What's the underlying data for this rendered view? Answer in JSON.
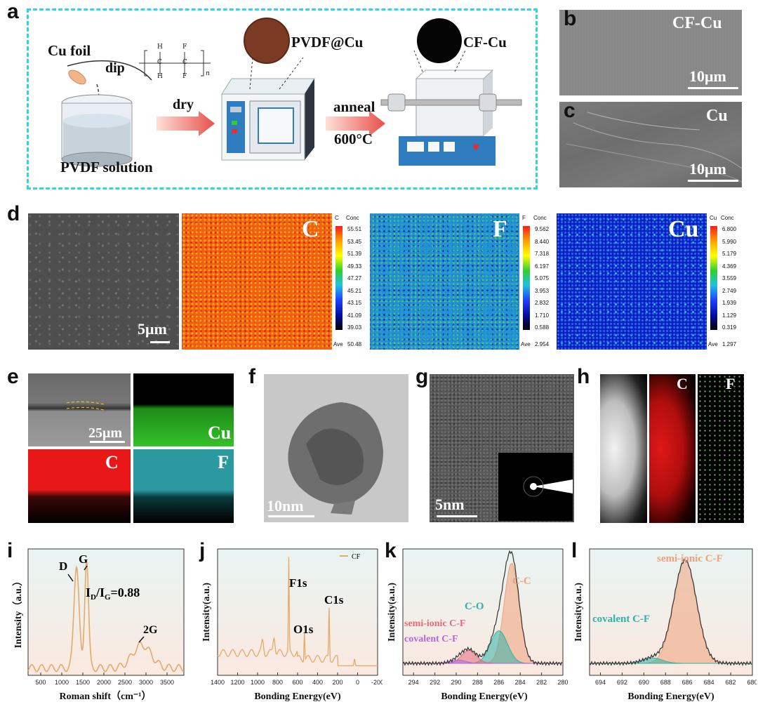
{
  "panel_labels": {
    "a": "a",
    "b": "b",
    "c": "c",
    "d": "d",
    "e": "e",
    "f": "f",
    "g": "g",
    "h": "h",
    "i": "i",
    "j": "j",
    "k": "k",
    "l": "l"
  },
  "schematic": {
    "cu_foil": "Cu foil",
    "dip": "dip",
    "pvdf_solution": "PVDF solution",
    "dry": "dry",
    "pvdf_cu": "PVDF@Cu",
    "anneal": "anneal",
    "temperature": "600°C",
    "cf_cu": "CF-Cu",
    "formula_h": "H",
    "formula_f": "F",
    "formula_c": "C",
    "formula_n": "n",
    "colors": {
      "border": "#36d3e8",
      "arrow": "#f08a7c",
      "pvdf_disc": "#7a3b22",
      "cf_disc": "#050505"
    }
  },
  "sem_b": {
    "label": "CF-Cu",
    "scale": "10μm"
  },
  "sem_c": {
    "label": "Cu",
    "scale": "10μm"
  },
  "panel_d": {
    "scale": "5μm",
    "maps": [
      {
        "element": "C",
        "cb_title": "C",
        "conc": "Conc",
        "ticks": [
          "55.51",
          "53.45",
          "51.39",
          "49.33",
          "47.27",
          "45.21",
          "43.15",
          "41.09",
          "39.03"
        ],
        "ave_label": "Ave",
        "ave": "50.48"
      },
      {
        "element": "F",
        "cb_title": "F",
        "conc": "Conc",
        "ticks": [
          "9.562",
          "8.440",
          "7.318",
          "6.197",
          "5.075",
          "3.953",
          "2.832",
          "1.710",
          "0.588"
        ],
        "ave_label": "Ave",
        "ave": "2.954"
      },
      {
        "element": "Cu",
        "cb_title": "Cu",
        "conc": "Conc",
        "ticks": [
          "6.800",
          "5.990",
          "5.179",
          "4.369",
          "3.559",
          "2.749",
          "1.939",
          "1.129",
          "0.319"
        ],
        "ave_label": "Ave",
        "ave": "1.297"
      }
    ]
  },
  "panel_e": {
    "scale": "25μm",
    "cu": "Cu",
    "c": "C",
    "f": "F"
  },
  "panel_f": {
    "scale": "10nm"
  },
  "panel_g": {
    "scale": "5nm"
  },
  "panel_h": {
    "c": "C",
    "f": "F"
  },
  "chart_data": [
    {
      "type": "line",
      "panel": "i",
      "xlabel": "Roman shift（cm⁻¹）",
      "ylabel": "Intensity（a.u.）",
      "xlim": [
        200,
        3900
      ],
      "xticks": [
        "500",
        "1000",
        "1500",
        "2000",
        "2500",
        "3000",
        "3500"
      ],
      "annotations": {
        "d": "D",
        "g": "G",
        "ratio_prefix": "I",
        "ratio_d": "D",
        "ratio_sep": "/I",
        "ratio_g": "G",
        "ratio_value": "=0.88",
        "g2": "2G"
      },
      "peaks": [
        {
          "name": "D",
          "x": 1350
        },
        {
          "name": "G",
          "x": 1590
        },
        {
          "name": "2G",
          "x": 2900
        }
      ]
    },
    {
      "type": "line",
      "panel": "j",
      "xlabel": "Bonding Energy(eV)",
      "ylabel": "Intensity(a.u.)",
      "xlim": [
        1400,
        -200
      ],
      "xticks": [
        "1400",
        "1200",
        "1000",
        "800",
        "600",
        "400",
        "200",
        "0",
        "-200"
      ],
      "legend": "CF",
      "peaks": [
        {
          "name": "F1s",
          "x": 688
        },
        {
          "name": "O1s",
          "x": 532
        },
        {
          "name": "C1s",
          "x": 285
        }
      ]
    },
    {
      "type": "area",
      "panel": "k",
      "xlabel": "Bonding Energy(eV)",
      "ylabel": "Intensity(a.u.)",
      "xlim": [
        295,
        280
      ],
      "xticks": [
        "294",
        "292",
        "290",
        "288",
        "286",
        "284",
        "282",
        "280"
      ],
      "series": [
        {
          "name": "C-C",
          "center": 284.8,
          "color": "#f0a07a"
        },
        {
          "name": "C-O",
          "center": 286.0,
          "color": "#2fb3a8"
        },
        {
          "name": "semi-ionic C-F",
          "center": 288.8,
          "color": "#e46a7c"
        },
        {
          "name": "covalent C-F",
          "center": 289.8,
          "color": "#b06ad8"
        }
      ]
    },
    {
      "type": "area",
      "panel": "l",
      "xlabel": "Bonding Energy(eV)",
      "ylabel": "Intensity(a.u.)",
      "xlim": [
        695,
        680
      ],
      "xticks": [
        "694",
        "692",
        "690",
        "688",
        "686",
        "684",
        "682",
        "680"
      ],
      "series": [
        {
          "name": "semi-ionic C-F",
          "center": 686.2,
          "color": "#f0a07a"
        },
        {
          "name": "covalent C-F",
          "center": 689.2,
          "color": "#2fb3a8"
        }
      ]
    }
  ]
}
